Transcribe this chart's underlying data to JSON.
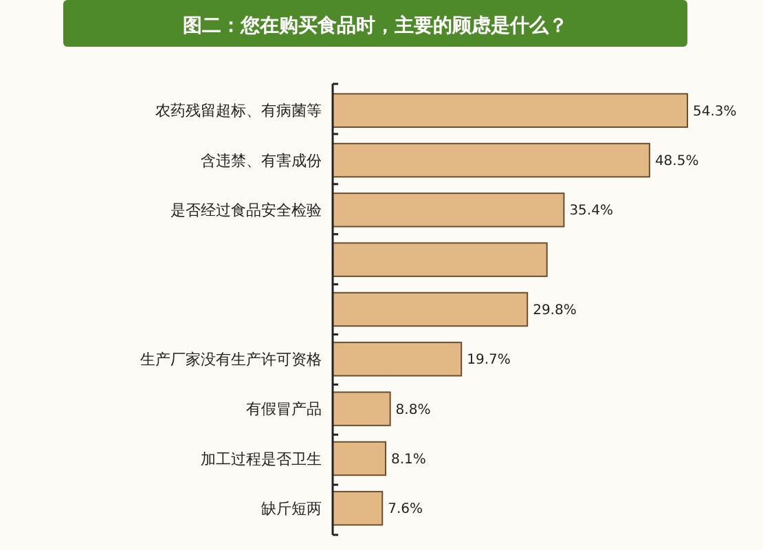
{
  "chart_data": {
    "type": "bar",
    "orientation": "horizontal",
    "title": "图二：您在购买食品时，主要的顾虑是什么？",
    "categories": [
      "农药残留超标、有病菌等",
      "含违禁、有害成份",
      "是否经过食品安全检验",
      null,
      null,
      "生产厂家没有生产许可资格",
      "有假冒产品",
      "加工过程是否卫生",
      "缺斤短两"
    ],
    "values": [
      54.3,
      48.5,
      35.4,
      32.8,
      29.8,
      19.7,
      8.8,
      8.1,
      7.6
    ],
    "value_labels": [
      "54.3%",
      "48.5%",
      "35.4%",
      null,
      "29.8%",
      "19.7%",
      "8.8%",
      "8.1%",
      "7.6%"
    ],
    "color": "#e2b985"
  }
}
